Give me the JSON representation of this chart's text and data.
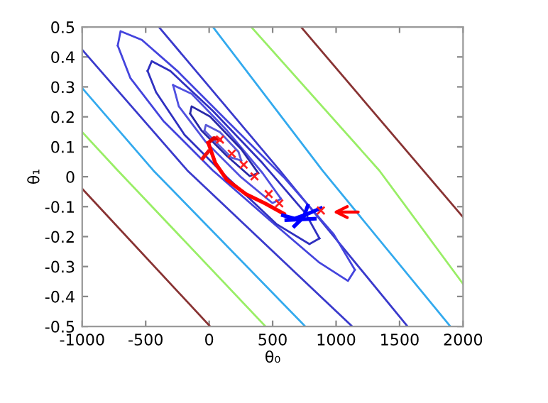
{
  "chart_data": {
    "type": "line",
    "xlabel": "θ₀",
    "ylabel": "θ₁",
    "xlim": [
      -1000,
      2000
    ],
    "ylim": [
      -0.5,
      0.5
    ],
    "xticks": [
      -1000,
      -500,
      0,
      500,
      1000,
      1500,
      2000
    ],
    "yticks": [
      -0.5,
      -0.4,
      -0.3,
      -0.2,
      -0.1,
      0,
      0.1,
      0.2,
      0.3,
      0.4,
      0.5
    ],
    "grid": false,
    "legend": false,
    "series": [
      {
        "color": "#883333",
        "x": [
          724,
          2000
        ],
        "values": [
          0.5,
          -0.135
        ]
      },
      {
        "color": "#883333",
        "x": [
          -1000,
          8
        ],
        "values": [
          -0.04,
          -0.5
        ]
      },
      {
        "color": "#99ee66",
        "x": [
          332,
          1340,
          2000
        ],
        "values": [
          0.5,
          0.021,
          -0.358
        ]
      },
      {
        "color": "#99ee66",
        "x": [
          -1000,
          -720,
          444
        ],
        "values": [
          0.149,
          0.021,
          -0.5
        ]
      },
      {
        "color": "#33aaee",
        "x": [
          30,
          892,
          1900
        ],
        "values": [
          0.5,
          0.021,
          -0.5
        ]
      },
      {
        "color": "#33aaee",
        "x": [
          -1000,
          -440,
          757
        ],
        "values": [
          0.296,
          0.021,
          -0.5
        ]
      },
      {
        "color": "#3a3acc",
        "x": [
          -396,
          556,
          1563
        ],
        "values": [
          0.5,
          0.021,
          -0.5
        ]
      },
      {
        "color": "#3a3acc",
        "x": [
          -1000,
          -172,
          1127
        ],
        "values": [
          0.424,
          0.021,
          -0.5
        ]
      },
      {
        "color": "#4444dd",
        "x": [
          -720,
          -698,
          -530,
          -250,
          141,
          589,
          981,
          1148
        ],
        "values": [
          0.438,
          0.486,
          0.457,
          0.353,
          0.187,
          -0.002,
          -0.192,
          -0.311
        ]
      },
      {
        "color": "#4444dd",
        "x": [
          -720,
          -620,
          -362,
          29,
          477,
          869,
          1093,
          1148
        ],
        "values": [
          0.438,
          0.329,
          0.187,
          0.021,
          -0.145,
          -0.287,
          -0.348,
          -0.311
        ]
      },
      {
        "color": "#3030c0",
        "x": [
          -485,
          -452,
          -306,
          29,
          421,
          757,
          869
        ],
        "values": [
          0.353,
          0.386,
          0.353,
          0.22,
          0.045,
          -0.121,
          -0.206
        ]
      },
      {
        "color": "#3030c0",
        "x": [
          -485,
          -418,
          -194,
          141,
          533,
          790,
          869
        ],
        "values": [
          0.353,
          0.282,
          0.14,
          -0.002,
          -0.159,
          -0.225,
          -0.206
        ]
      },
      {
        "color": "#5050e0",
        "x": [
          -284,
          -138,
          141,
          421,
          566
        ],
        "values": [
          0.306,
          0.277,
          0.154,
          0.012,
          -0.074
        ]
      },
      {
        "color": "#5050e0",
        "x": [
          -284,
          -239,
          -26,
          253,
          499,
          566
        ],
        "values": [
          0.306,
          0.235,
          0.116,
          -0.002,
          -0.088,
          -0.074
        ]
      },
      {
        "color": "#2828a8",
        "x": [
          -150,
          -138,
          7,
          253,
          387
        ],
        "values": [
          0.211,
          0.235,
          0.201,
          0.092,
          0.012
        ]
      },
      {
        "color": "#2828a8",
        "x": [
          -150,
          -60,
          141,
          320,
          387
        ],
        "values": [
          0.211,
          0.154,
          0.069,
          0.002,
          0.012
        ]
      },
      {
        "color": "#5a5ad8",
        "x": [
          -37,
          -26,
          85,
          231,
          253
        ],
        "values": [
          0.154,
          0.173,
          0.149,
          0.083,
          0.054
        ]
      },
      {
        "color": "#5a5ad8",
        "x": [
          -37,
          52,
          175,
          253
        ],
        "values": [
          0.154,
          0.116,
          0.064,
          0.054
        ]
      },
      {
        "color": "#e00000",
        "x": [
          -7,
          37,
          85
        ],
        "values": [
          0.113,
          0.129,
          0.124
        ]
      },
      {
        "color": "#ff0000",
        "x": [
          -7,
          49,
          141,
          290,
          440,
          589
        ],
        "values": [
          0.113,
          0.045,
          -0.011,
          -0.058,
          -0.089,
          -0.124
        ]
      },
      {
        "color": "#f01010",
        "x": [
          -52,
          -7
        ],
        "values": [
          0.061,
          0.084
        ]
      },
      {
        "type": "scatter",
        "marker": "cross",
        "color": "#ff2020",
        "x": [
          85,
          178,
          272,
          357,
          469,
          552,
          880
        ],
        "values": [
          0.124,
          0.077,
          0.04,
          0.001,
          -0.058,
          -0.089,
          -0.113
        ]
      },
      {
        "color": "#0000ff",
        "x": [
          581,
          671,
          776,
          880
        ],
        "values": [
          -0.129,
          -0.14,
          -0.124,
          -0.105
        ]
      },
      {
        "color": "#0000ff",
        "x": [
          671,
          746,
          776
        ],
        "values": [
          -0.165,
          -0.134,
          -0.097
        ]
      },
      {
        "color": "#0000ff",
        "x": [
          608,
          832
        ],
        "values": [
          -0.145,
          -0.14
        ]
      }
    ]
  }
}
